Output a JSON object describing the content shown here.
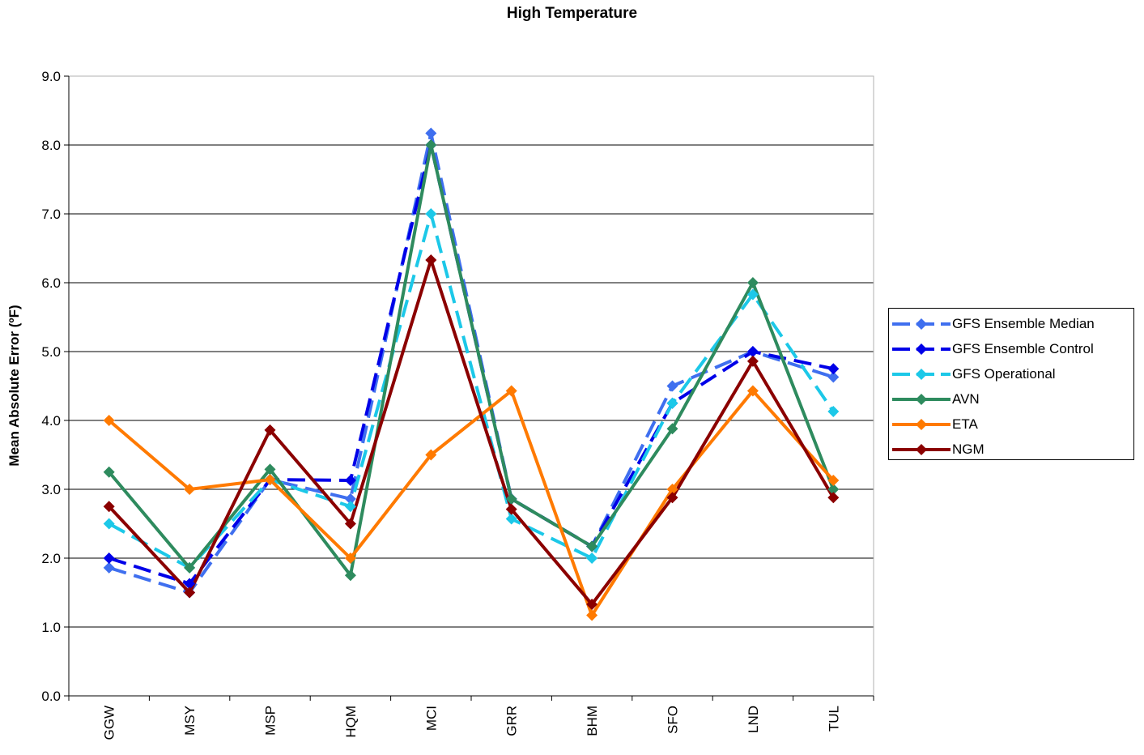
{
  "chart_data": {
    "type": "line",
    "title": "High Temperature",
    "xlabel": "",
    "ylabel": "Mean Absolute Error (ºF)",
    "ylim": [
      0,
      9
    ],
    "yticks": [
      "0.0",
      "1.0",
      "2.0",
      "3.0",
      "4.0",
      "5.0",
      "6.0",
      "7.0",
      "8.0",
      "9.0"
    ],
    "grid": true,
    "legend_position": "right",
    "categories": [
      "GGW",
      "MSY",
      "MSP",
      "HQM",
      "MCI",
      "GRR",
      "BHM",
      "SFO",
      "LND",
      "TUL"
    ],
    "series": [
      {
        "name": "GFS Ensemble Median",
        "color": "#3f6fef",
        "dash": "long",
        "values": [
          1.86,
          1.5,
          3.14,
          2.86,
          8.17,
          2.86,
          2.17,
          4.5,
          5.0,
          4.63
        ]
      },
      {
        "name": "GFS Ensemble Control",
        "color": "#0000e8",
        "dash": "long",
        "values": [
          2.0,
          1.63,
          3.14,
          3.13,
          8.0,
          2.86,
          2.17,
          4.25,
          5.0,
          4.75
        ]
      },
      {
        "name": "GFS Operational",
        "color": "#1cc8e8",
        "dash": "long",
        "values": [
          2.5,
          1.86,
          3.14,
          2.75,
          7.0,
          2.57,
          2.0,
          4.25,
          5.83,
          4.13
        ]
      },
      {
        "name": "AVN",
        "color": "#2e8b5e",
        "dash": "solid",
        "values": [
          3.25,
          1.86,
          3.29,
          1.75,
          8.0,
          2.86,
          2.17,
          3.88,
          6.0,
          3.0
        ]
      },
      {
        "name": "ETA",
        "color": "#ff7a00",
        "dash": "solid",
        "values": [
          4.0,
          3.0,
          3.14,
          2.0,
          3.5,
          4.43,
          1.17,
          3.0,
          4.43,
          3.13
        ]
      },
      {
        "name": "NGM",
        "color": "#8b0000",
        "dash": "solid",
        "values": [
          2.75,
          1.5,
          3.86,
          2.5,
          6.33,
          2.71,
          1.33,
          2.88,
          4.86,
          2.88
        ]
      }
    ]
  }
}
